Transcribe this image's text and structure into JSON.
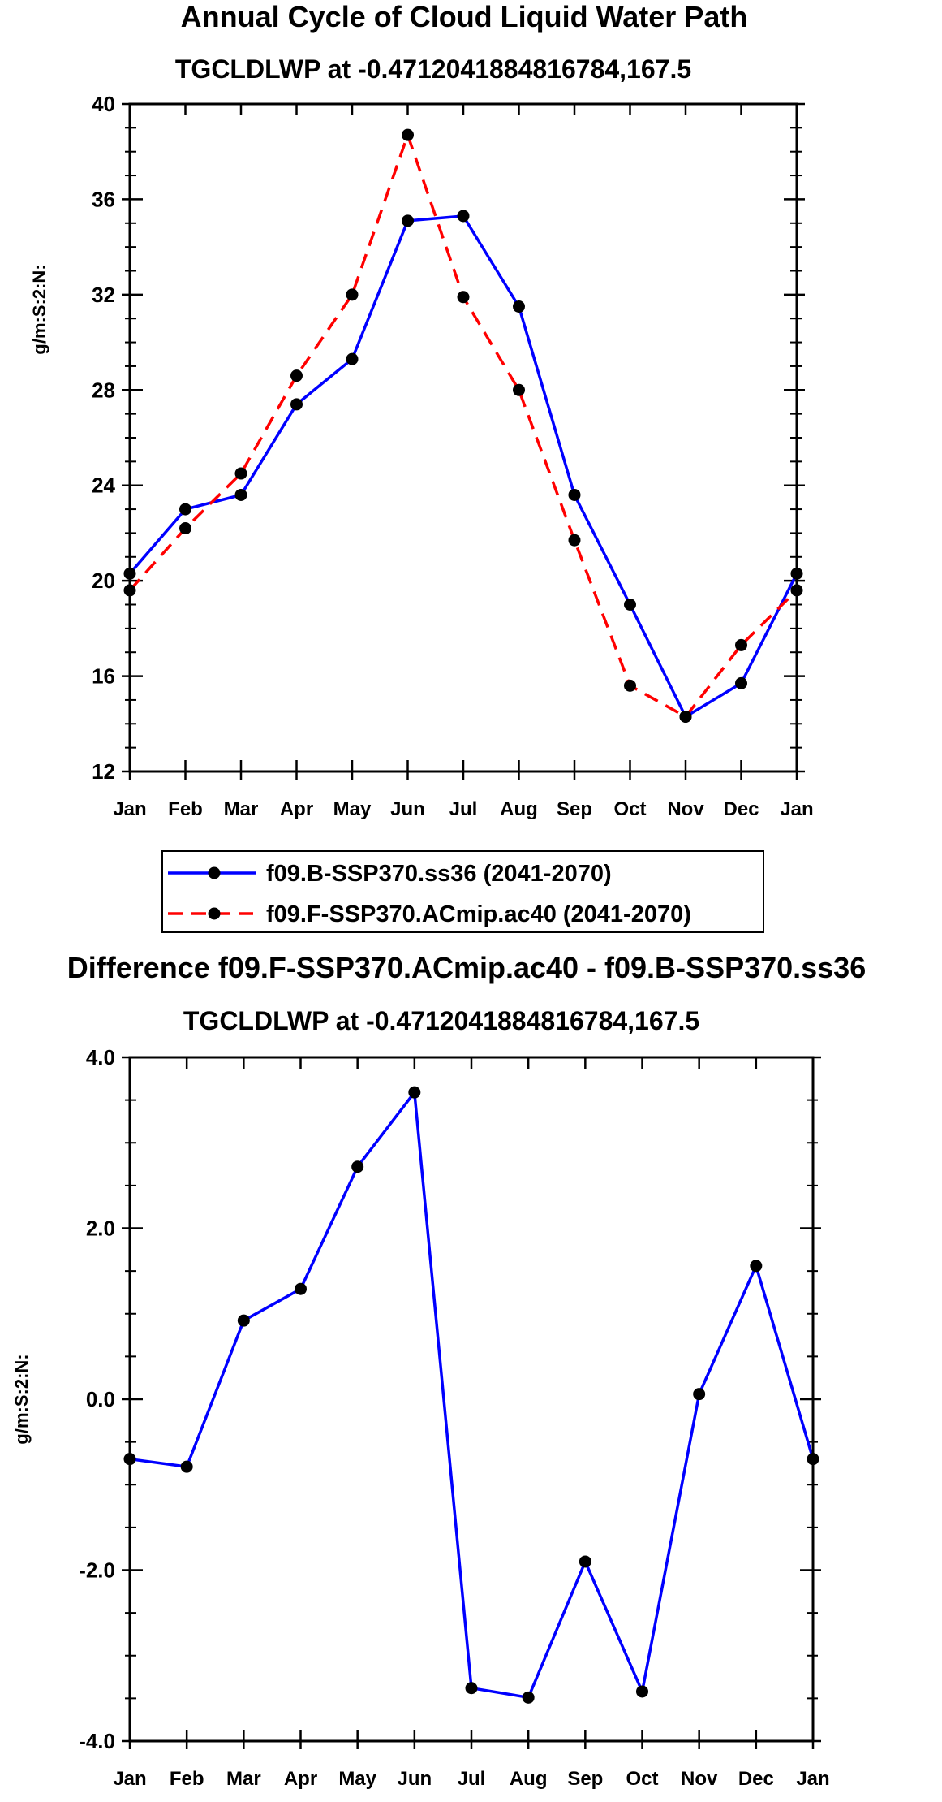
{
  "chart_data": [
    {
      "type": "line",
      "title": "Annual Cycle of Cloud Liquid Water Path",
      "subtitle": "TGCLDLWP at -0.4712041884816784,167.5",
      "xlabel": "",
      "ylabel": "g/m:S:2:N:",
      "ylim": [
        12,
        40
      ],
      "yticks": [
        "12",
        "16",
        "20",
        "24",
        "28",
        "32",
        "36",
        "40"
      ],
      "ytick_values": [
        12,
        16,
        20,
        24,
        28,
        32,
        36,
        40
      ],
      "categories": [
        "Jan",
        "Feb",
        "Mar",
        "Apr",
        "May",
        "Jun",
        "Jul",
        "Aug",
        "Sep",
        "Oct",
        "Nov",
        "Dec",
        "Jan"
      ],
      "legend_position": "below",
      "series": [
        {
          "name": "f09.B-SSP370.ss36 (2041-2070)",
          "color": "#0000ff",
          "dash": "solid",
          "values": [
            20.3,
            23.0,
            23.6,
            27.4,
            29.3,
            35.1,
            35.3,
            31.5,
            23.6,
            19.0,
            14.3,
            15.7,
            20.3
          ]
        },
        {
          "name": "f09.F-SSP370.ACmip.ac40 (2041-2070)",
          "color": "#ff0000",
          "dash": "dashed",
          "values": [
            19.6,
            22.2,
            24.5,
            28.6,
            32.0,
            38.7,
            31.9,
            28.0,
            21.7,
            15.6,
            14.3,
            17.3,
            19.6
          ]
        }
      ]
    },
    {
      "type": "line",
      "title": "Difference f09.F-SSP370.ACmip.ac40 - f09.B-SSP370.ss36",
      "subtitle": "TGCLDLWP at -0.4712041884816784,167.5",
      "xlabel": "",
      "ylabel": "g/m:S:2:N:",
      "ylim": [
        -4,
        4
      ],
      "yticks": [
        "-4.0",
        "-2.0",
        "0.0",
        "2.0",
        "4.0"
      ],
      "ytick_values": [
        -4,
        -2,
        0,
        2,
        4
      ],
      "categories": [
        "Jan",
        "Feb",
        "Mar",
        "Apr",
        "May",
        "Jun",
        "Jul",
        "Aug",
        "Sep",
        "Oct",
        "Nov",
        "Dec",
        "Jan"
      ],
      "series": [
        {
          "name": "difference",
          "color": "#0000ff",
          "dash": "solid",
          "values": [
            -0.7,
            -0.79,
            0.92,
            1.29,
            2.72,
            3.59,
            -3.38,
            -3.49,
            -1.9,
            -3.42,
            0.06,
            1.56,
            -0.7
          ]
        }
      ]
    }
  ]
}
